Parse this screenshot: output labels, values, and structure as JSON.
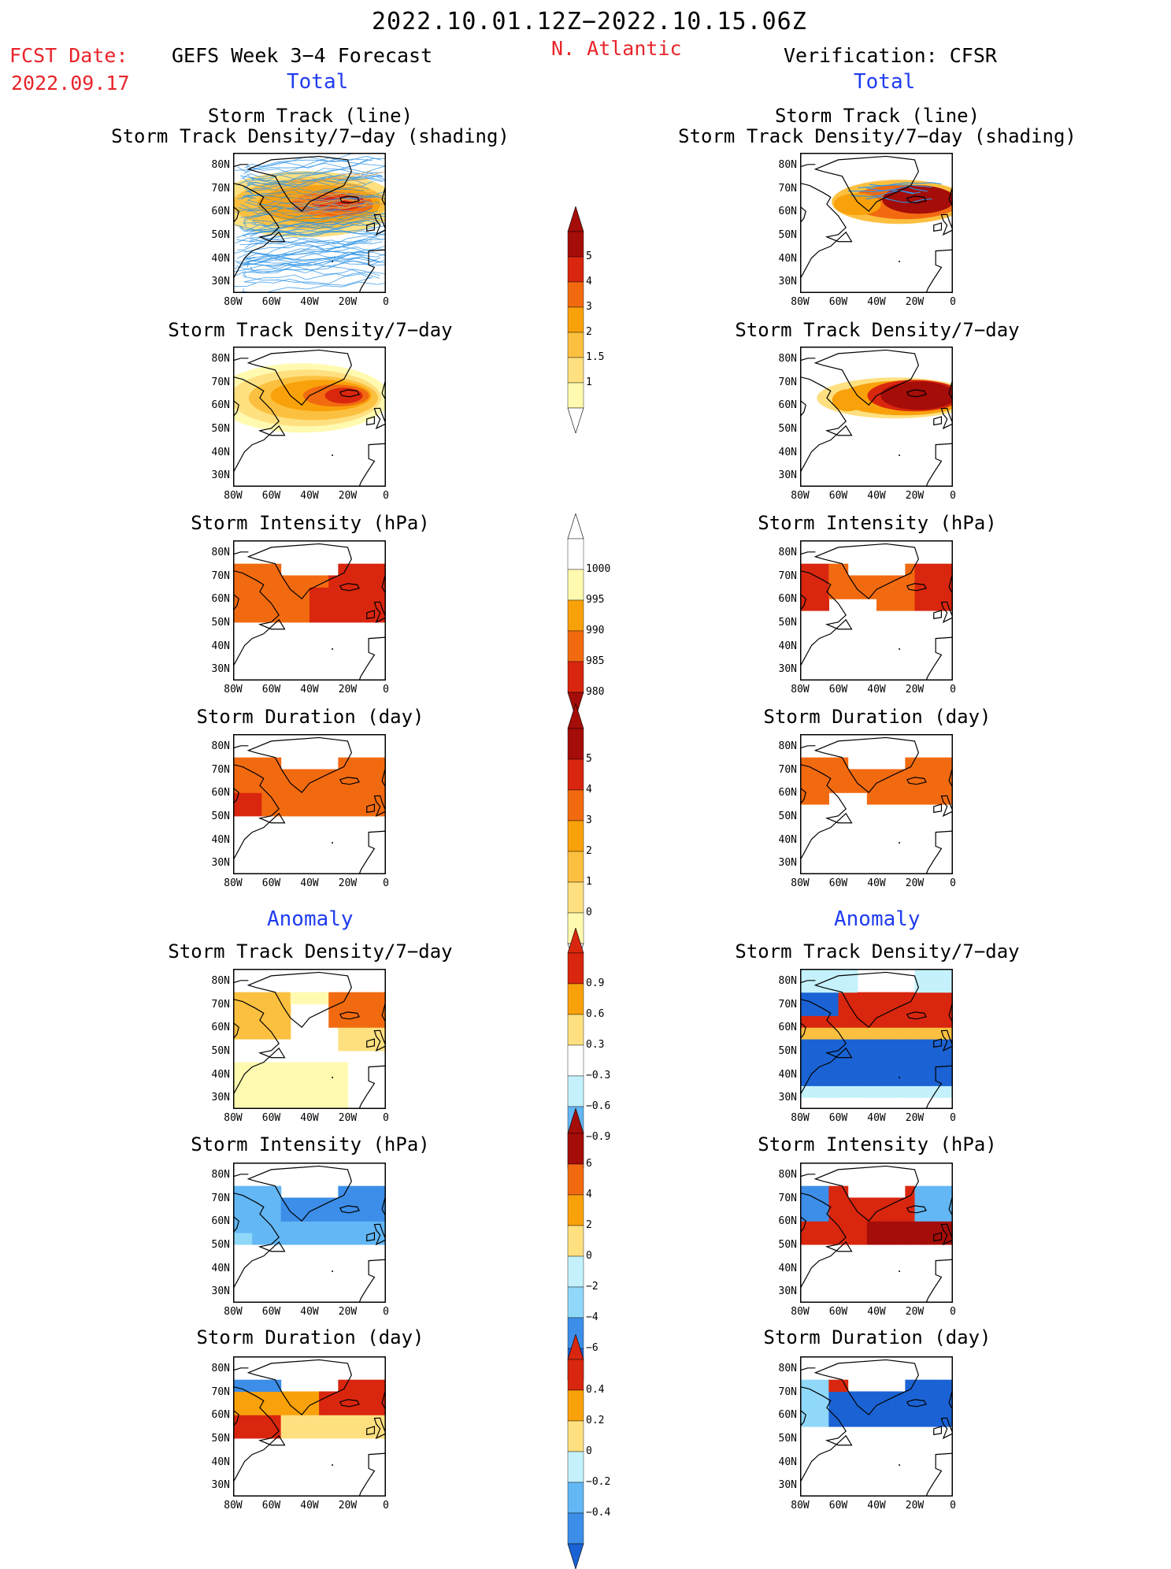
{
  "header": {
    "period": "2022.10.01.12Z−2022.10.15.06Z",
    "fcst_label": "FCST Date:",
    "fcst_date": "2022.09.17",
    "left_title": "GEFS Week 3−4 Forecast",
    "region": "N. Atlantic",
    "right_title": "Verification: CFSR",
    "total_label": "Total",
    "anomaly_label": "Anomaly"
  },
  "panel_titles": {
    "track_line": "Storm Track (line)",
    "track_shading": "Storm Track Density/7−day (shading)",
    "density": "Storm Track Density/7−day",
    "intensity": "Storm Intensity (hPa)",
    "duration": "Storm Duration (day)"
  },
  "axes": {
    "lat_labels": [
      "80N",
      "70N",
      "60N",
      "50N",
      "40N",
      "30N"
    ],
    "lon_labels": [
      "80W",
      "60W",
      "40W",
      "20W",
      "0"
    ]
  },
  "colorbars": {
    "density": [
      "5",
      "4",
      "3",
      "2",
      "1.5",
      "1"
    ],
    "intensity": [
      "1000",
      "995",
      "990",
      "985",
      "980"
    ],
    "duration": [
      "5",
      "4",
      "3",
      "2",
      "1",
      "0"
    ],
    "density_anom": [
      "0.9",
      "0.6",
      "0.3",
      "−0.3",
      "−0.6",
      "−0.9"
    ],
    "intensity_anom": [
      "6",
      "4",
      "2",
      "0",
      "−2",
      "−4",
      "−6"
    ],
    "duration_anom": [
      "0.4",
      "0.2",
      "0",
      "−0.2",
      "−0.4"
    ]
  },
  "colors": {
    "header_red": "#e8242a",
    "header_blue": "#1f3cf0",
    "warm": [
      "#fffab0",
      "#ffe080",
      "#fcc040",
      "#f9a10a",
      "#f26a10",
      "#d9260e",
      "#a50d08"
    ],
    "cool": [
      "#c4f1fb",
      "#8fd8f9",
      "#63b7f5",
      "#3c8ee8",
      "#1b63d4"
    ],
    "track_lines": "#2e93e6"
  }
}
